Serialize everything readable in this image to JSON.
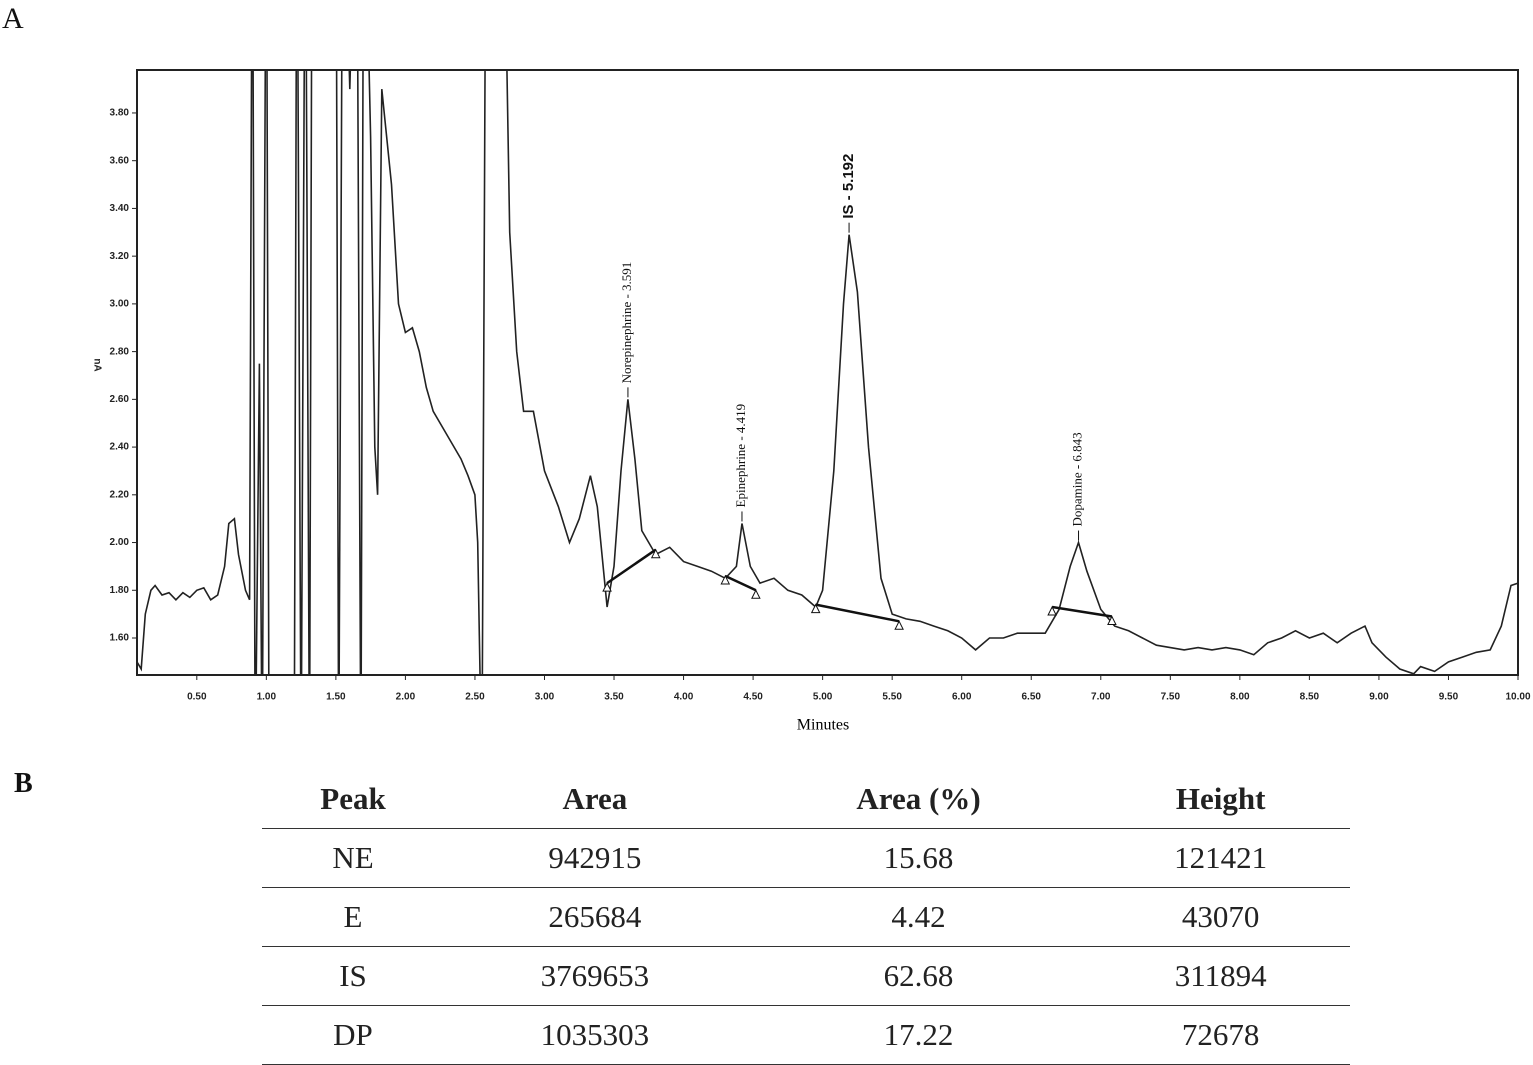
{
  "panel_labels": [
    "A",
    "B"
  ],
  "chart_data": {
    "type": "line",
    "ylabel": "nA",
    "xlabel": "Minutes",
    "color": "#222222",
    "xlim": [
      0.07,
      10.0
    ],
    "ylim": [
      1.445,
      3.98
    ],
    "xticks": [
      {
        "value": 0.5,
        "label": "0.50"
      },
      {
        "value": 1.0,
        "label": "1.00"
      },
      {
        "value": 1.5,
        "label": "1.50"
      },
      {
        "value": 2.0,
        "label": "2.00"
      },
      {
        "value": 2.5,
        "label": "2.50"
      },
      {
        "value": 3.0,
        "label": "3.00"
      },
      {
        "value": 3.5,
        "label": "3.50"
      },
      {
        "value": 4.0,
        "label": "4.00"
      },
      {
        "value": 4.5,
        "label": "4.50"
      },
      {
        "value": 5.0,
        "label": "5.00"
      },
      {
        "value": 5.5,
        "label": "5.50"
      },
      {
        "value": 6.0,
        "label": "6.00"
      },
      {
        "value": 6.5,
        "label": "6.50"
      },
      {
        "value": 7.0,
        "label": "7.00"
      },
      {
        "value": 7.5,
        "label": "7.50"
      },
      {
        "value": 8.0,
        "label": "8.00"
      },
      {
        "value": 8.5,
        "label": "8.50"
      },
      {
        "value": 9.0,
        "label": "9.00"
      },
      {
        "value": 9.5,
        "label": "9.50"
      },
      {
        "value": 10.0,
        "label": "10.00"
      }
    ],
    "yticks": [
      {
        "value": 1.6,
        "label": "1.60"
      },
      {
        "value": 1.8,
        "label": "1.80"
      },
      {
        "value": 2.0,
        "label": "2.00"
      },
      {
        "value": 2.2,
        "label": "2.20"
      },
      {
        "value": 2.4,
        "label": "2.40"
      },
      {
        "value": 2.6,
        "label": "2.60"
      },
      {
        "value": 2.8,
        "label": "2.80"
      },
      {
        "value": 3.0,
        "label": "3.00"
      },
      {
        "value": 3.2,
        "label": "3.20"
      },
      {
        "value": 3.4,
        "label": "3.40"
      },
      {
        "value": 3.6,
        "label": "3.60"
      },
      {
        "value": 3.8,
        "label": "3.80"
      }
    ],
    "x": [
      0.07,
      0.1,
      0.13,
      0.17,
      0.2,
      0.25,
      0.3,
      0.35,
      0.4,
      0.45,
      0.5,
      0.55,
      0.6,
      0.65,
      0.7,
      0.73,
      0.77,
      0.8,
      0.85,
      0.88,
      0.9,
      0.92,
      0.95,
      0.97,
      1.0,
      1.02,
      1.2,
      1.22,
      1.25,
      1.28,
      1.31,
      1.33,
      1.5,
      1.52,
      1.55,
      1.6,
      1.65,
      1.68,
      1.7,
      1.75,
      1.78,
      1.8,
      1.83,
      1.9,
      1.95,
      2.0,
      2.05,
      2.1,
      2.15,
      2.2,
      2.3,
      2.4,
      2.45,
      2.5,
      2.52,
      2.55,
      2.58,
      2.7,
      2.75,
      2.8,
      2.85,
      2.92,
      3.0,
      3.1,
      3.18,
      3.25,
      3.33,
      3.38,
      3.45,
      3.5,
      3.55,
      3.6,
      3.65,
      3.7,
      3.8,
      3.9,
      4.0,
      4.1,
      4.2,
      4.3,
      4.38,
      4.42,
      4.48,
      4.55,
      4.65,
      4.75,
      4.85,
      4.95,
      5.0,
      5.08,
      5.15,
      5.19,
      5.25,
      5.33,
      5.42,
      5.5,
      5.6,
      5.7,
      5.8,
      5.9,
      6.0,
      6.1,
      6.2,
      6.3,
      6.4,
      6.5,
      6.6,
      6.7,
      6.78,
      6.84,
      6.9,
      7.0,
      7.1,
      7.2,
      7.3,
      7.4,
      7.5,
      7.6,
      7.7,
      7.8,
      7.9,
      8.0,
      8.1,
      8.2,
      8.3,
      8.4,
      8.5,
      8.6,
      8.7,
      8.8,
      8.9,
      8.95,
      9.05,
      9.15,
      9.25,
      9.3,
      9.4,
      9.5,
      9.6,
      9.7,
      9.8,
      9.88,
      9.95,
      10.0
    ],
    "values": [
      1.5,
      1.47,
      1.7,
      1.8,
      1.82,
      1.78,
      1.79,
      1.76,
      1.79,
      1.77,
      1.8,
      1.81,
      1.76,
      1.78,
      1.9,
      2.08,
      2.1,
      1.95,
      1.8,
      1.76,
      5,
      1.0,
      2.75,
      1.0,
      5,
      1.0,
      1.0,
      5,
      1.0,
      5,
      1.0,
      5,
      5,
      1.0,
      5,
      3.9,
      5,
      1.0,
      5,
      3.7,
      2.4,
      2.2,
      3.9,
      3.5,
      3.0,
      2.88,
      2.9,
      2.8,
      2.65,
      2.55,
      2.45,
      2.35,
      2.28,
      2.2,
      2.0,
      1.0,
      5,
      5,
      3.3,
      2.8,
      2.55,
      2.55,
      2.3,
      2.15,
      2.0,
      2.1,
      2.28,
      2.15,
      1.73,
      1.9,
      2.3,
      2.6,
      2.35,
      2.05,
      1.95,
      1.98,
      1.92,
      1.9,
      1.88,
      1.85,
      1.9,
      2.08,
      1.9,
      1.83,
      1.85,
      1.8,
      1.78,
      1.73,
      1.8,
      2.3,
      3.0,
      3.29,
      3.05,
      2.4,
      1.85,
      1.7,
      1.68,
      1.67,
      1.65,
      1.63,
      1.6,
      1.55,
      1.6,
      1.6,
      1.62,
      1.62,
      1.62,
      1.72,
      1.9,
      2.0,
      1.88,
      1.72,
      1.65,
      1.63,
      1.6,
      1.57,
      1.56,
      1.55,
      1.56,
      1.55,
      1.56,
      1.55,
      1.53,
      1.58,
      1.6,
      1.63,
      1.6,
      1.62,
      1.58,
      1.62,
      1.65,
      1.58,
      1.52,
      1.47,
      1.45,
      1.48,
      1.46,
      1.5,
      1.52,
      1.54,
      1.55,
      1.65,
      1.82,
      1.83
    ],
    "peak_baselines": [
      {
        "x": [
          3.45,
          3.8
        ],
        "y": [
          1.83,
          1.97
        ]
      },
      {
        "x": [
          4.3,
          4.52
        ],
        "y": [
          1.86,
          1.8
        ]
      },
      {
        "x": [
          4.95,
          5.55
        ],
        "y": [
          1.74,
          1.67
        ]
      },
      {
        "x": [
          6.65,
          7.08
        ],
        "y": [
          1.73,
          1.69
        ]
      }
    ],
    "annotations": [
      {
        "text": "Norepinephrine  - 3.591",
        "x": 3.6,
        "y": 2.6
      },
      {
        "text": "Epinephrine  - 4.419",
        "x": 4.42,
        "y": 2.08
      },
      {
        "text": "IS - 5.192",
        "x": 5.19,
        "y": 3.29
      },
      {
        "text": "Dopamine  - 6.843",
        "x": 6.84,
        "y": 2.0
      }
    ]
  },
  "table": {
    "headers": [
      "Peak",
      "Area",
      "Area (%)",
      "Height"
    ],
    "rows": [
      [
        "NE",
        942915,
        15.68,
        121421
      ],
      [
        "E",
        265684,
        4.42,
        43070
      ],
      [
        "IS",
        3769653,
        62.68,
        311894
      ],
      [
        "DP",
        1035303,
        17.22,
        72678
      ]
    ]
  }
}
